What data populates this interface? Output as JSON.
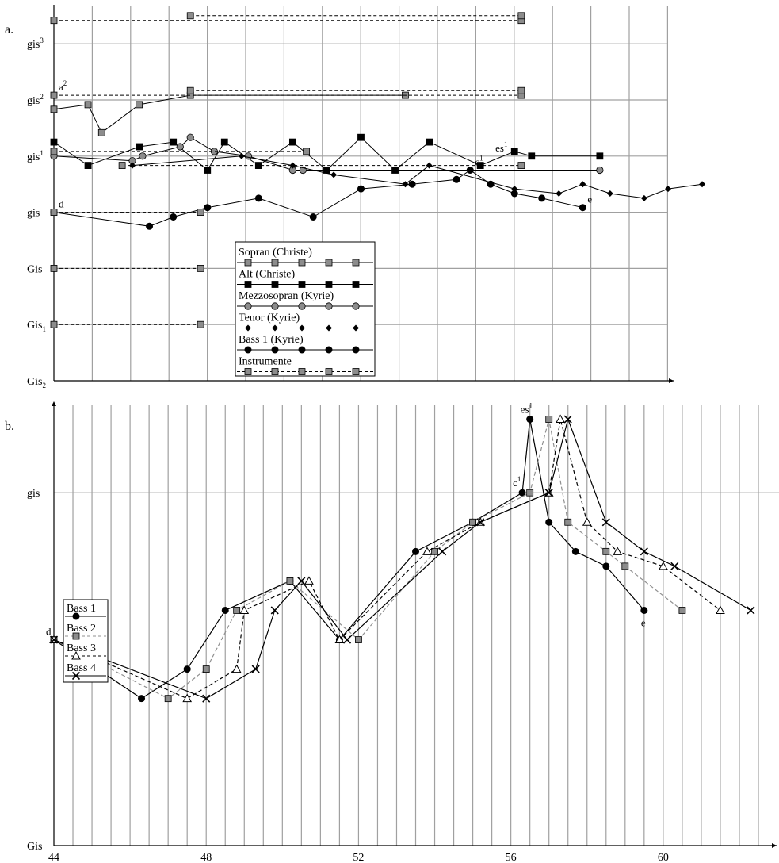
{
  "chart_data": [
    {
      "panel_label": "a.",
      "type": "line",
      "x_unit": "bar",
      "xlim": [
        44,
        62
      ],
      "y_tick_labels": [
        {
          "base": "Gis",
          "sub": "2",
          "sup": ""
        },
        {
          "base": "Gis",
          "sub": "1",
          "sup": ""
        },
        {
          "base": "Gis",
          "sub": "",
          "sup": ""
        },
        {
          "base": "gis",
          "sub": "",
          "sup": ""
        },
        {
          "base": "gis",
          "sub": "",
          "sup": "1"
        },
        {
          "base": "gis",
          "sub": "",
          "sup": "2"
        },
        {
          "base": "gis",
          "sub": "",
          "sup": "3"
        }
      ],
      "y_note": "y = semitones above Gis2",
      "ylim": [
        0,
        80
      ],
      "grid": true,
      "legend_placement": "bottom-center",
      "legend": [
        "Sopran (Christe)",
        "Alt (Christe)",
        "Mezzosopran  (Kyrie)",
        "Tenor (Kyrie)",
        "Bass 1 (Kyrie)",
        "Instrumente"
      ],
      "series": [
        {
          "name": "Sopran (Christe)",
          "marker": "square-gray",
          "line": "solid",
          "points": [
            [
              44,
              58
            ],
            [
              45,
              59
            ],
            [
              45.4,
              53
            ],
            [
              46.5,
              59
            ],
            [
              48,
              61
            ],
            [
              54.3,
              61
            ]
          ]
        },
        {
          "name": "Alt (Christe)",
          "marker": "square-black",
          "line": "solid",
          "points": [
            [
              44,
              51
            ],
            [
              45,
              46
            ],
            [
              46.5,
              50
            ],
            [
              47.5,
              51
            ],
            [
              48.5,
              45
            ],
            [
              49,
              51
            ],
            [
              50,
              46
            ],
            [
              51,
              51
            ],
            [
              52,
              45
            ],
            [
              53,
              52
            ],
            [
              54,
              45
            ],
            [
              55,
              51
            ],
            [
              56.5,
              46
            ],
            [
              57.5,
              49
            ],
            [
              58,
              48
            ],
            [
              60,
              48
            ]
          ]
        },
        {
          "name": "Mezzosopran  (Kyrie)",
          "marker": "circle-gray",
          "line": "solid",
          "points": [
            [
              44,
              48
            ],
            [
              46.3,
              47
            ],
            [
              46.6,
              48
            ],
            [
              47.7,
              50
            ],
            [
              48,
              52
            ],
            [
              48.7,
              49
            ],
            [
              49.7,
              48
            ],
            [
              51,
              45
            ],
            [
              51.3,
              45
            ],
            [
              60,
              45
            ]
          ]
        },
        {
          "name": "Tenor (Kyrie)",
          "marker": "diamond-black",
          "line": "solid",
          "points": [
            [
              46.3,
              46
            ],
            [
              49.5,
              48
            ],
            [
              51,
              46
            ],
            [
              52.2,
              44
            ],
            [
              54.3,
              42
            ],
            [
              55,
              46
            ],
            [
              57.5,
              41
            ],
            [
              58.8,
              40
            ],
            [
              59.5,
              42
            ],
            [
              60.3,
              40
            ],
            [
              61.3,
              39
            ],
            [
              62,
              41
            ],
            [
              63,
              42
            ]
          ]
        },
        {
          "name": "Bass 1 (Kyrie)",
          "marker": "circle-black",
          "line": "solid",
          "points": [
            [
              44,
              36
            ],
            [
              46.8,
              33
            ],
            [
              47.5,
              35
            ],
            [
              48.5,
              37
            ],
            [
              50,
              39
            ],
            [
              51.6,
              35
            ],
            [
              53,
              41
            ],
            [
              54.5,
              42
            ],
            [
              55.8,
              43
            ],
            [
              56.2,
              45
            ],
            [
              56.8,
              42
            ],
            [
              57.5,
              40
            ],
            [
              58.3,
              39
            ],
            [
              59.5,
              37
            ]
          ]
        },
        {
          "name": "Instrumente",
          "marker": "square-gray",
          "line": "dashed",
          "segments": [
            [
              [
                44,
                77
              ],
              [
                57.7,
                77
              ]
            ],
            [
              [
                48,
                78
              ],
              [
                57.7,
                78
              ]
            ],
            [
              [
                44,
                61
              ],
              [
                57.7,
                61
              ]
            ],
            [
              [
                48,
                62
              ],
              [
                57.7,
                62
              ]
            ],
            [
              [
                44,
                49
              ],
              [
                51.4,
                49
              ]
            ],
            [
              [
                46,
                46
              ],
              [
                57.7,
                46
              ]
            ],
            [
              [
                44,
                36
              ],
              [
                48.3,
                36
              ]
            ],
            [
              [
                44,
                24
              ],
              [
                48.3,
                24
              ]
            ],
            [
              [
                44,
                12
              ],
              [
                48.3,
                12
              ]
            ]
          ]
        }
      ],
      "annotations": [
        {
          "base": "a",
          "sup": "2",
          "x": 44,
          "y": 61
        },
        {
          "base": "d",
          "sup": "",
          "x": 44,
          "y": 36
        },
        {
          "base": "c",
          "sup": "1",
          "x": 56.2,
          "y": 45
        },
        {
          "base": "es",
          "sup": "1",
          "x": 56.8,
          "y": 48
        },
        {
          "base": "e",
          "sup": "",
          "x": 59.5,
          "y": 37
        }
      ]
    },
    {
      "panel_label": "b.",
      "type": "line",
      "x_unit": "bar",
      "x_ticks": [
        44,
        48,
        52,
        56,
        60
      ],
      "x_tick_labels": [
        "44",
        "48",
        "52",
        "56",
        "60"
      ],
      "xlim": [
        44,
        62.5
      ],
      "y_tick_labels": [
        {
          "base": "Gis",
          "sub": "",
          "sup": ""
        },
        {
          "base": "gis",
          "sub": "",
          "sup": ""
        }
      ],
      "y_note": "y = semitones above Gis",
      "ylim": [
        0,
        15
      ],
      "grid": true,
      "legend_placement": "middle-left",
      "legend": [
        "Bass 1",
        "Bass 2",
        "Bass 3",
        "Bass 4"
      ],
      "series": [
        {
          "name": "Bass 1",
          "marker": "circle-black",
          "line": "solid",
          "color": "#000000",
          "x": [
            44,
            46.3,
            47.5,
            48.5,
            50.2,
            51.5,
            53.5,
            55,
            56.3,
            56.5,
            57,
            57.7,
            58.5,
            59.5
          ],
          "y": [
            7,
            5,
            6,
            8,
            9,
            7,
            10,
            11,
            12,
            14.5,
            11,
            10,
            9.5,
            8
          ]
        },
        {
          "name": "Bass 2",
          "marker": "square-gray",
          "line": "dashed",
          "color": "#909090",
          "x": [
            44,
            47,
            48,
            48.8,
            50.2,
            52,
            54,
            55,
            56.5,
            57,
            57.5,
            58.5,
            59,
            60.5
          ],
          "y": [
            7,
            5,
            6,
            8,
            9,
            7,
            10,
            11,
            12,
            14.5,
            11,
            10,
            9.5,
            8
          ]
        },
        {
          "name": "Bass 3",
          "marker": "triangle-open",
          "line": "dashed",
          "color": "#000000",
          "x": [
            44,
            47.5,
            48.8,
            49,
            50.7,
            51.5,
            53.8,
            55.2,
            57,
            57.3,
            58,
            58.8,
            60,
            61.5
          ],
          "y": [
            7,
            5,
            6,
            8,
            9,
            7,
            10,
            11,
            12,
            14.5,
            11,
            10,
            9.5,
            8
          ]
        },
        {
          "name": "Bass 4",
          "marker": "x",
          "line": "solid",
          "color": "#000000",
          "x": [
            44,
            48,
            49.3,
            49.8,
            50.5,
            51.7,
            54.2,
            55.2,
            57,
            57.5,
            58.5,
            59.5,
            60.3,
            62.3
          ],
          "y": [
            7,
            5,
            6,
            8,
            9,
            7,
            10,
            11,
            12,
            14.5,
            11,
            10,
            9.5,
            8
          ]
        }
      ],
      "annotations": [
        {
          "base": "d",
          "sup": "",
          "x": 44,
          "y": 7
        },
        {
          "base": "c",
          "sup": "1",
          "x": 56.3,
          "y": 12
        },
        {
          "base": "es",
          "sup": "1",
          "x": 56.5,
          "y": 14.5
        },
        {
          "base": "e",
          "sup": "",
          "x": 59.5,
          "y": 8
        }
      ]
    }
  ]
}
